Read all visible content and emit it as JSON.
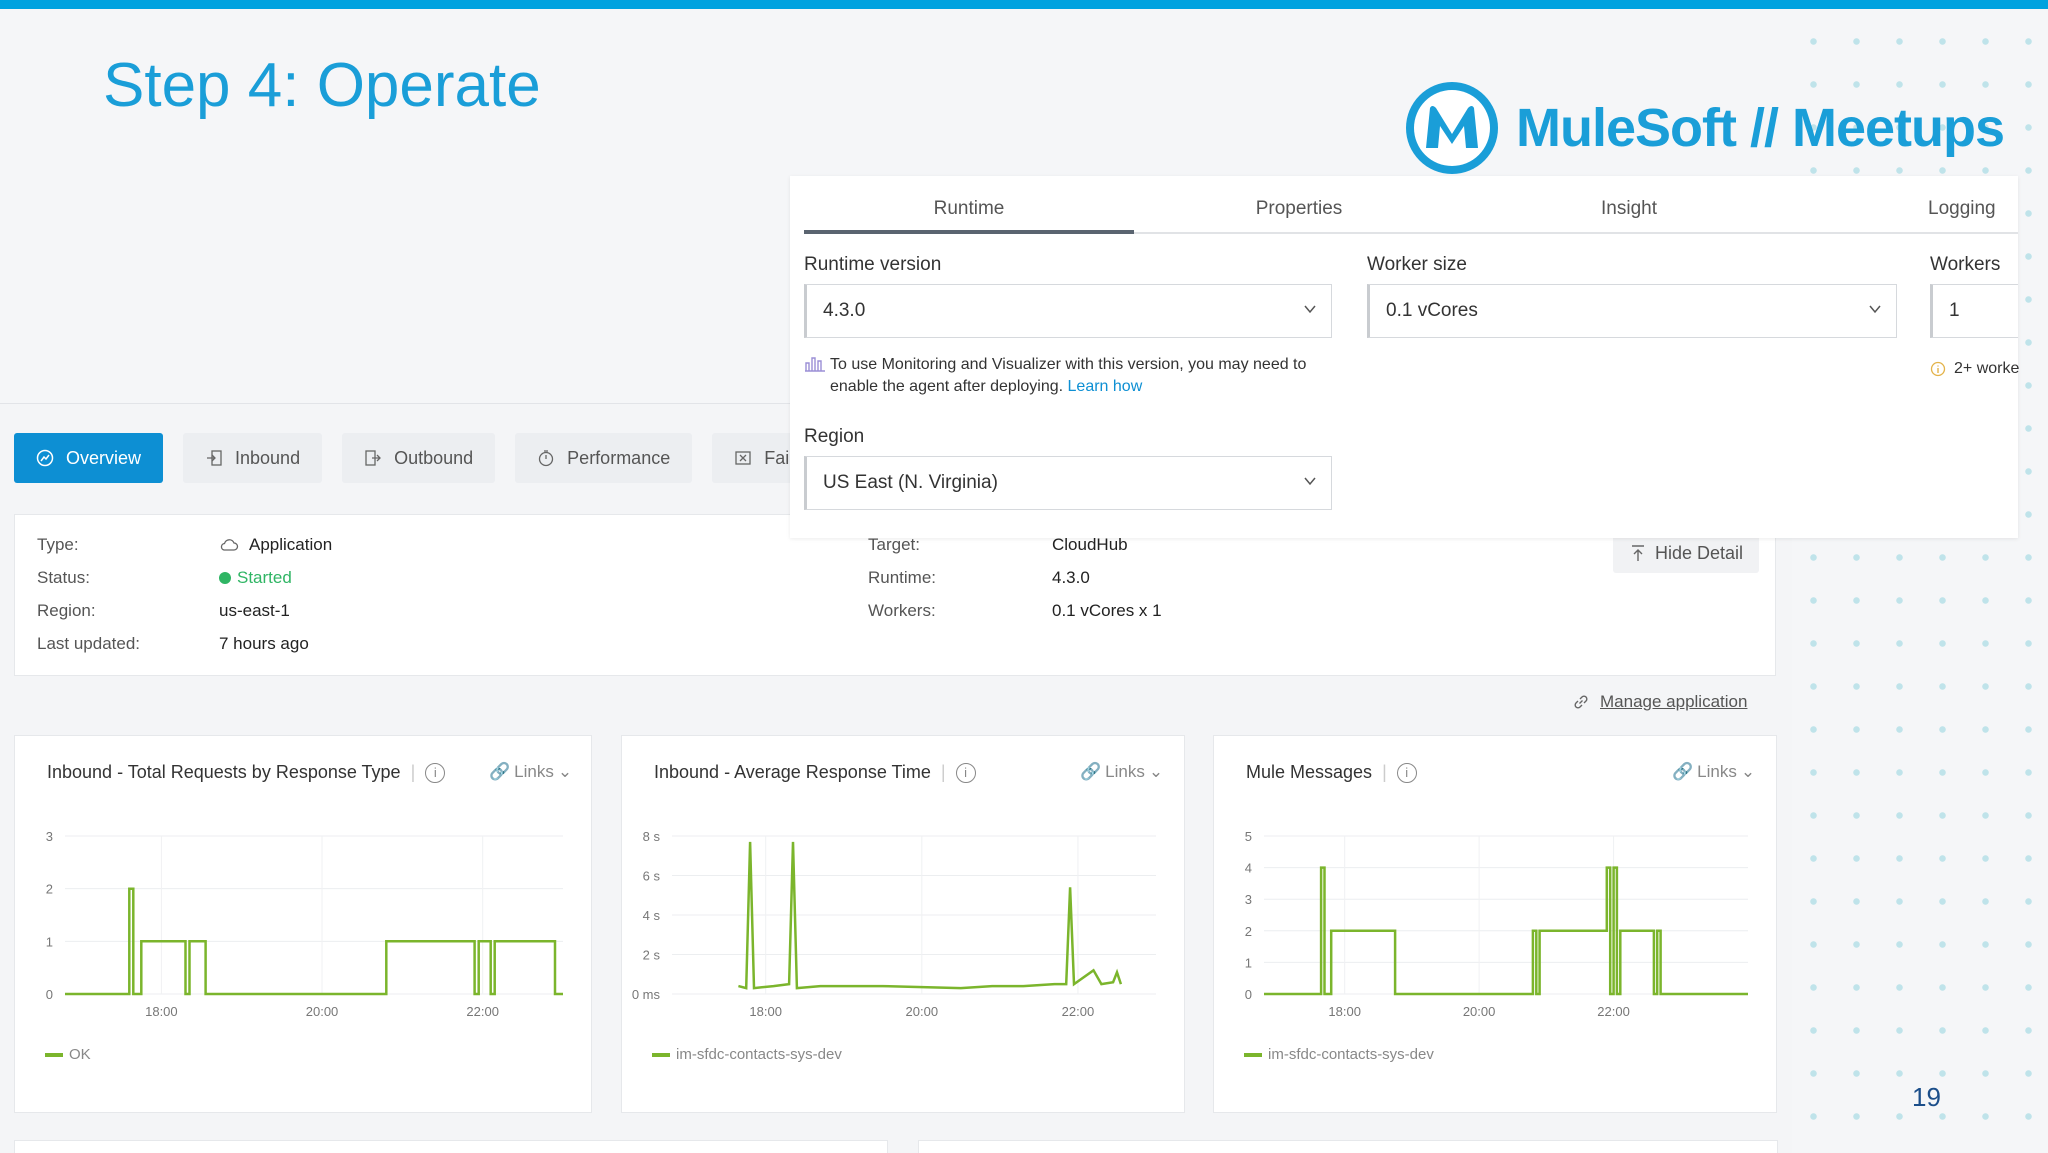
{
  "slide": {
    "title": "Step 4: Operate",
    "page_number": "19",
    "logo_text": "MuleSoft // Meetups"
  },
  "colors": {
    "accent": "#00a2df",
    "active_tab": "#0d8fd3",
    "series": "#7bb52c",
    "started": "#2fb564"
  },
  "settings": {
    "tabs": [
      {
        "label": "Runtime"
      },
      {
        "label": "Properties"
      },
      {
        "label": "Insight"
      },
      {
        "label": "Logging"
      }
    ],
    "runtime_version": {
      "label": "Runtime version",
      "value": "4.3.0"
    },
    "worker_size": {
      "label": "Worker size",
      "value": "0.1 vCores"
    },
    "workers": {
      "label": "Workers",
      "value": "1",
      "note": "2+ worke"
    },
    "notice": {
      "text": "To use Monitoring and Visualizer with this version, you may need to enable the agent after deploying.",
      "link": "Learn how"
    },
    "region": {
      "label": "Region",
      "value": "US East (N. Virginia)"
    }
  },
  "nav": {
    "tabs": [
      {
        "label": "Overview",
        "icon": "overview-icon"
      },
      {
        "label": "Inbound",
        "icon": "inbound-icon"
      },
      {
        "label": "Outbound",
        "icon": "outbound-icon"
      },
      {
        "label": "Performance",
        "icon": "performance-icon"
      },
      {
        "label": "Failures",
        "icon": "failures-icon"
      }
    ]
  },
  "details": {
    "type": {
      "label": "Type:",
      "value": "Application"
    },
    "status": {
      "label": "Status:",
      "value": "Started"
    },
    "region": {
      "label": "Region:",
      "value": "us-east-1"
    },
    "last_updated": {
      "label": "Last updated:",
      "value": "7 hours ago"
    },
    "target": {
      "label": "Target:",
      "value": "CloudHub"
    },
    "runtime": {
      "label": "Runtime:",
      "value": "4.3.0"
    },
    "workers": {
      "label": "Workers:",
      "value": "0.1 vCores x 1"
    },
    "hide_detail": "Hide Detail",
    "manage": "Manage application"
  },
  "links_label": "Links",
  "chart_data": [
    {
      "type": "line",
      "title": "Inbound - Total Requests by Response Type",
      "x_ticks": [
        "18:00",
        "20:00",
        "22:00"
      ],
      "y_ticks": [
        "0",
        "1",
        "2",
        "3"
      ],
      "ylim": [
        0,
        3
      ],
      "xlim": [
        16.8,
        23.0
      ],
      "legend": "bottom-left",
      "series": [
        {
          "name": "OK",
          "points": [
            [
              16.8,
              0
            ],
            [
              17.6,
              0
            ],
            [
              17.6,
              2
            ],
            [
              17.65,
              2
            ],
            [
              17.65,
              0
            ],
            [
              17.75,
              0
            ],
            [
              17.75,
              1
            ],
            [
              18.3,
              1
            ],
            [
              18.3,
              0
            ],
            [
              18.35,
              0
            ],
            [
              18.35,
              1
            ],
            [
              18.55,
              1
            ],
            [
              18.55,
              0
            ],
            [
              20.8,
              0
            ],
            [
              20.8,
              1
            ],
            [
              21.9,
              1
            ],
            [
              21.9,
              0
            ],
            [
              21.95,
              0
            ],
            [
              21.95,
              1
            ],
            [
              22.1,
              1
            ],
            [
              22.1,
              0
            ],
            [
              22.15,
              0
            ],
            [
              22.15,
              1
            ],
            [
              22.9,
              1
            ],
            [
              22.9,
              0
            ],
            [
              23.0,
              0
            ]
          ]
        }
      ]
    },
    {
      "type": "line",
      "title": "Inbound - Average Response Time",
      "x_ticks": [
        "18:00",
        "20:00",
        "22:00"
      ],
      "y_ticks": [
        "0 ms",
        "2 s",
        "4 s",
        "6 s",
        "8 s"
      ],
      "ylim": [
        0,
        8
      ],
      "xlim": [
        16.8,
        23.0
      ],
      "legend": "bottom-left",
      "series": [
        {
          "name": "im-sfdc-contacts-sys-dev",
          "points": [
            [
              17.65,
              0.4
            ],
            [
              17.75,
              0.3
            ],
            [
              17.8,
              7.7
            ],
            [
              17.85,
              0.3
            ],
            [
              18.1,
              0.4
            ],
            [
              18.3,
              0.5
            ],
            [
              18.35,
              7.7
            ],
            [
              18.4,
              0.3
            ],
            [
              18.7,
              0.4
            ],
            [
              19.5,
              0.4
            ],
            [
              20.5,
              0.3
            ],
            [
              20.9,
              0.4
            ],
            [
              21.3,
              0.4
            ],
            [
              21.7,
              0.5
            ],
            [
              21.85,
              0.5
            ],
            [
              21.9,
              5.4
            ],
            [
              21.95,
              0.5
            ],
            [
              22.2,
              1.2
            ],
            [
              22.3,
              0.5
            ],
            [
              22.45,
              0.6
            ],
            [
              22.5,
              1.1
            ],
            [
              22.55,
              0.5
            ]
          ]
        }
      ]
    },
    {
      "type": "line",
      "title": "Mule Messages",
      "x_ticks": [
        "18:00",
        "20:00",
        "22:00"
      ],
      "y_ticks": [
        "0",
        "1",
        "2",
        "3",
        "4",
        "5"
      ],
      "ylim": [
        0,
        5
      ],
      "xlim": [
        16.8,
        24.0
      ],
      "legend": "bottom-left",
      "series": [
        {
          "name": "im-sfdc-contacts-sys-dev",
          "points": [
            [
              16.8,
              0
            ],
            [
              17.65,
              0
            ],
            [
              17.65,
              4
            ],
            [
              17.7,
              4
            ],
            [
              17.7,
              0
            ],
            [
              17.8,
              0
            ],
            [
              17.8,
              2
            ],
            [
              18.75,
              2
            ],
            [
              18.75,
              0
            ],
            [
              20.8,
              0
            ],
            [
              20.8,
              2
            ],
            [
              20.85,
              2
            ],
            [
              20.85,
              0
            ],
            [
              20.9,
              0
            ],
            [
              20.9,
              2
            ],
            [
              21.9,
              2
            ],
            [
              21.9,
              4
            ],
            [
              21.95,
              4
            ],
            [
              21.95,
              0
            ],
            [
              22.0,
              0
            ],
            [
              22.0,
              4
            ],
            [
              22.05,
              4
            ],
            [
              22.05,
              0
            ],
            [
              22.1,
              0
            ],
            [
              22.1,
              2
            ],
            [
              22.6,
              2
            ],
            [
              22.6,
              0
            ],
            [
              22.65,
              0
            ],
            [
              22.65,
              2
            ],
            [
              22.7,
              2
            ],
            [
              22.7,
              0
            ],
            [
              24.0,
              0
            ]
          ]
        }
      ]
    }
  ]
}
